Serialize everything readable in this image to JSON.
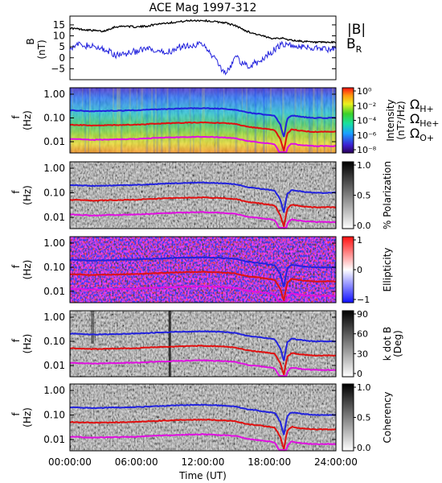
{
  "chart_data": [
    {
      "type": "line",
      "title": "ACE Mag 1997-312",
      "ylabel": "B",
      "yunit": "(nT)",
      "ylim": [
        -10,
        19
      ],
      "yticks": [
        -5,
        0,
        5,
        10,
        15
      ],
      "x_hours": [
        0,
        1,
        2,
        3,
        3.5,
        4,
        5,
        6,
        7,
        8,
        9,
        10,
        11,
        12,
        13,
        14,
        15,
        16,
        17,
        18,
        19,
        20,
        21,
        22,
        23,
        24
      ],
      "series": [
        {
          "name": "|B|",
          "color": "#000000",
          "values": [
            13.5,
            13,
            12.5,
            12,
            13,
            14,
            14.5,
            14,
            14.5,
            15.5,
            16,
            16.5,
            17,
            17,
            16.5,
            16,
            14.5,
            12,
            10.5,
            9,
            9,
            8,
            7.5,
            7,
            7,
            7
          ]
        },
        {
          "name": "B_R",
          "color": "#2222dd",
          "values": [
            5,
            6,
            5,
            4,
            3,
            1,
            2,
            3,
            4,
            2,
            3,
            5,
            6,
            6,
            0,
            -7,
            0,
            -4,
            -2,
            2,
            6,
            5.5,
            5,
            4.5,
            4,
            4
          ]
        }
      ],
      "legend_position": "right"
    },
    {
      "type": "heatmap",
      "ylabel": "f",
      "yunit": "(Hz)",
      "yticks": [
        "1.00",
        "0.10",
        "0.01"
      ],
      "colorbar": {
        "label": "Intensity",
        "unit": "(nT²/Hz)",
        "ticks": [
          "10⁰",
          "10⁻²",
          "10⁻⁴",
          "10⁻⁶",
          "10⁻⁸"
        ]
      }
    },
    {
      "type": "heatmap",
      "ylabel": "f",
      "yunit": "(Hz)",
      "yticks": [
        "1.00",
        "0.10",
        "0.01"
      ],
      "colorbar": {
        "label": "% Polarization",
        "ticks": [
          "1.0",
          "0.5",
          "0.0"
        ]
      }
    },
    {
      "type": "heatmap",
      "ylabel": "f",
      "yunit": "(Hz)",
      "yticks": [
        "1.00",
        "0.10",
        "0.01"
      ],
      "colorbar": {
        "label": "Ellipticity",
        "ticks": [
          "1",
          "0",
          "−1"
        ]
      }
    },
    {
      "type": "heatmap",
      "ylabel": "f",
      "yunit": "(Hz)",
      "yticks": [
        "1.00",
        "0.10",
        "0.01"
      ],
      "colorbar": {
        "label": "k dot B",
        "unit": "(Deg)",
        "ticks": [
          "90",
          "60",
          "30",
          "0"
        ]
      }
    },
    {
      "type": "heatmap",
      "ylabel": "f",
      "yunit": "(Hz)",
      "yticks": [
        "1.00",
        "0.10",
        "0.01"
      ],
      "colorbar": {
        "label": "Coherency",
        "ticks": [
          "1.0",
          "0.5",
          "0.0"
        ]
      }
    }
  ],
  "gyrofrequency": {
    "labels": [
      {
        "text": "Ω",
        "sub": "H+",
        "color": "#2222dd"
      },
      {
        "text": "Ω",
        "sub": "He+",
        "color": "#e01010"
      },
      {
        "text": "Ω",
        "sub": "O+",
        "color": "#e010e0"
      }
    ],
    "x_hours": [
      0,
      2,
      4,
      6,
      8,
      10,
      12,
      14,
      15,
      16,
      17,
      18,
      18.5,
      19,
      19.3,
      19.6,
      20,
      21,
      22,
      23,
      24
    ],
    "H_plus_hz": [
      0.21,
      0.19,
      0.2,
      0.21,
      0.23,
      0.25,
      0.26,
      0.24,
      0.22,
      0.17,
      0.15,
      0.13,
      0.12,
      0.05,
      0.015,
      0.09,
      0.13,
      0.11,
      0.1,
      0.1,
      0.1
    ],
    "He_plus_hz": [
      0.052,
      0.048,
      0.05,
      0.052,
      0.058,
      0.062,
      0.065,
      0.06,
      0.055,
      0.042,
      0.038,
      0.033,
      0.03,
      0.012,
      0.004,
      0.022,
      0.033,
      0.028,
      0.026,
      0.026,
      0.026
    ],
    "O_plus_hz": [
      0.013,
      0.012,
      0.0125,
      0.013,
      0.0145,
      0.0155,
      0.0163,
      0.015,
      0.0138,
      0.0105,
      0.0095,
      0.0083,
      0.0075,
      0.003,
      0.001,
      0.0055,
      0.0083,
      0.007,
      0.0065,
      0.0065,
      0.0065
    ]
  },
  "x_axis": {
    "label": "Time (UT)",
    "ticks": [
      "00:00:00",
      "06:00:00",
      "12:00:00",
      "18:00:00",
      "24:00:00"
    ]
  }
}
